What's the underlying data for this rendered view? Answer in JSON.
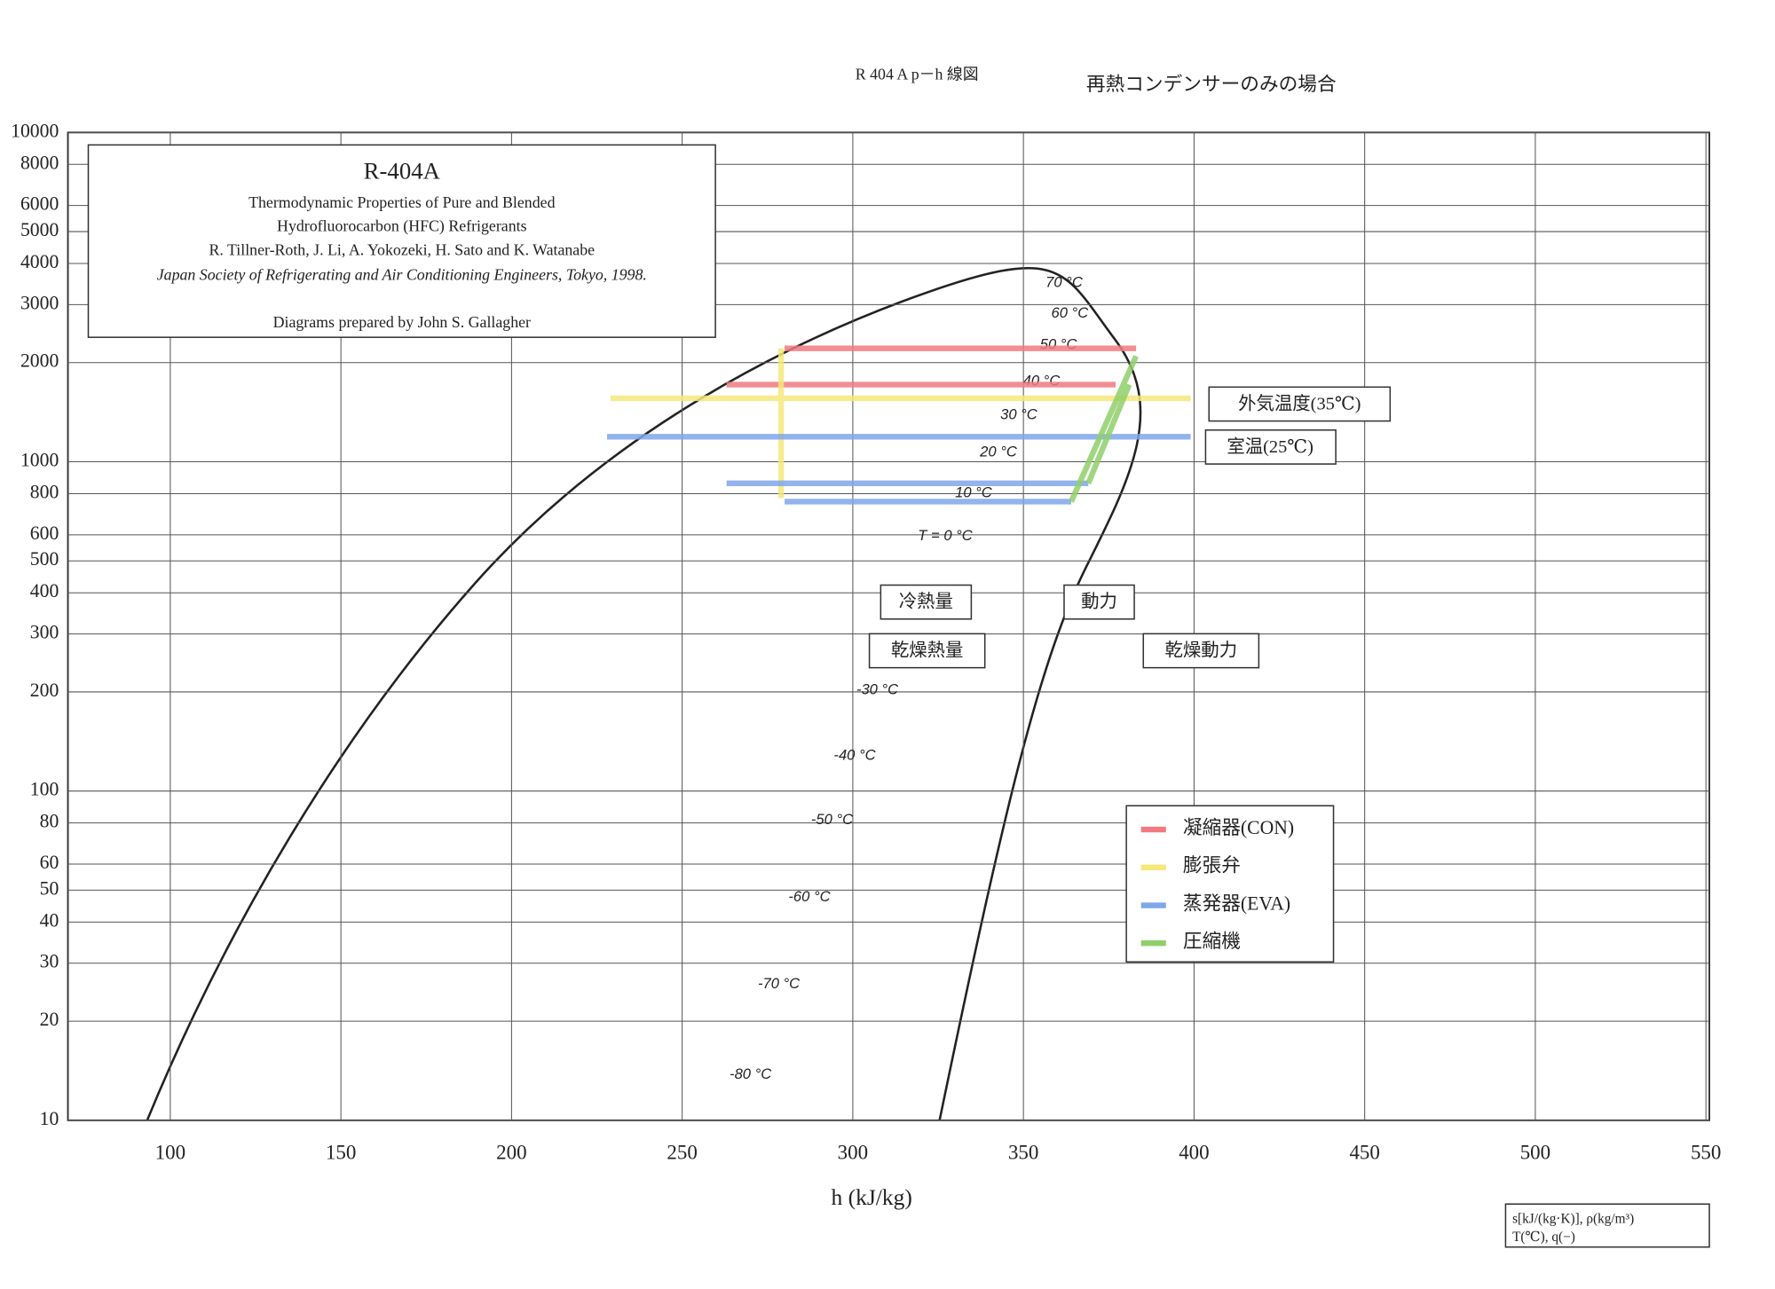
{
  "chart_data": {
    "type": "line",
    "header": "R 404 A p－h 線図",
    "subheader": "再熱コンデンサーのみの場合",
    "info_box": [
      "R-404A",
      "Thermodynamic Properties of Pure and Blended",
      "Hydrofluorocarbon (HFC) Refrigerants",
      "R. Tillner-Roth, J. Li, A. Yokozeki, H. Sato and K. Watanabe",
      "Japan Society of Refrigerating and Air Conditioning Engineers, Tokyo, 1998.",
      "Diagrams prepared by John S. Gallagher"
    ],
    "x_label": "h (kJ/kg)",
    "units_note": [
      "s[kJ/(kg·K)], ρ(kg/m³)",
      "T(℃), q(−)"
    ],
    "annotations": [
      "外気温度(35℃)",
      "室温(25℃)",
      "冷熱量",
      "動力",
      "乾燥熱量",
      "乾燥動力"
    ],
    "temperature_labels": [
      "70 °C",
      "60 °C",
      "50 °C",
      "40 °C",
      "30 °C",
      "20 °C",
      "10 °C",
      "T = 0 °C",
      "-30 °C",
      "-40 °C",
      "-50 °C",
      "-60 °C",
      "-70 °C",
      "-80 °C"
    ],
    "xlim": [
      70,
      551
    ],
    "xticks": [
      100,
      150,
      200,
      250,
      300,
      350,
      400,
      450,
      500,
      550
    ],
    "ylim": [
      10,
      10000
    ],
    "ylog": true,
    "yticks": [
      10,
      20,
      30,
      40,
      50,
      60,
      80,
      100,
      200,
      300,
      400,
      500,
      600,
      800,
      1000,
      2000,
      3000,
      4000,
      5000,
      6000,
      8000,
      10000
    ],
    "grid": true,
    "series": [
      {
        "name": "凝縮器(CON)",
        "color": "#f07a80",
        "x": [
          280,
          383,
          null,
          263,
          377
        ],
        "values": [
          2210,
          2210,
          null,
          1716,
          1716
        ]
      },
      {
        "name": "膨張弁",
        "color": "#f5e77a",
        "x": [
          229,
          399,
          null,
          279,
          279
        ],
        "values": [
          1559,
          1559,
          null,
          2212,
          776
        ]
      },
      {
        "name": "蒸発器(EVA)",
        "color": "#7fa6ea",
        "x": [
          228,
          399,
          null,
          263,
          369,
          null,
          280,
          364
        ],
        "values": [
          1191,
          1191,
          null,
          860,
          860,
          null,
          757,
          757
        ]
      },
      {
        "name": "圧縮機",
        "color": "#8fcf6a",
        "x": [
          364,
          383,
          null,
          369,
          381
        ],
        "values": [
          757,
          2094,
          null,
          860,
          1716
        ]
      }
    ]
  }
}
